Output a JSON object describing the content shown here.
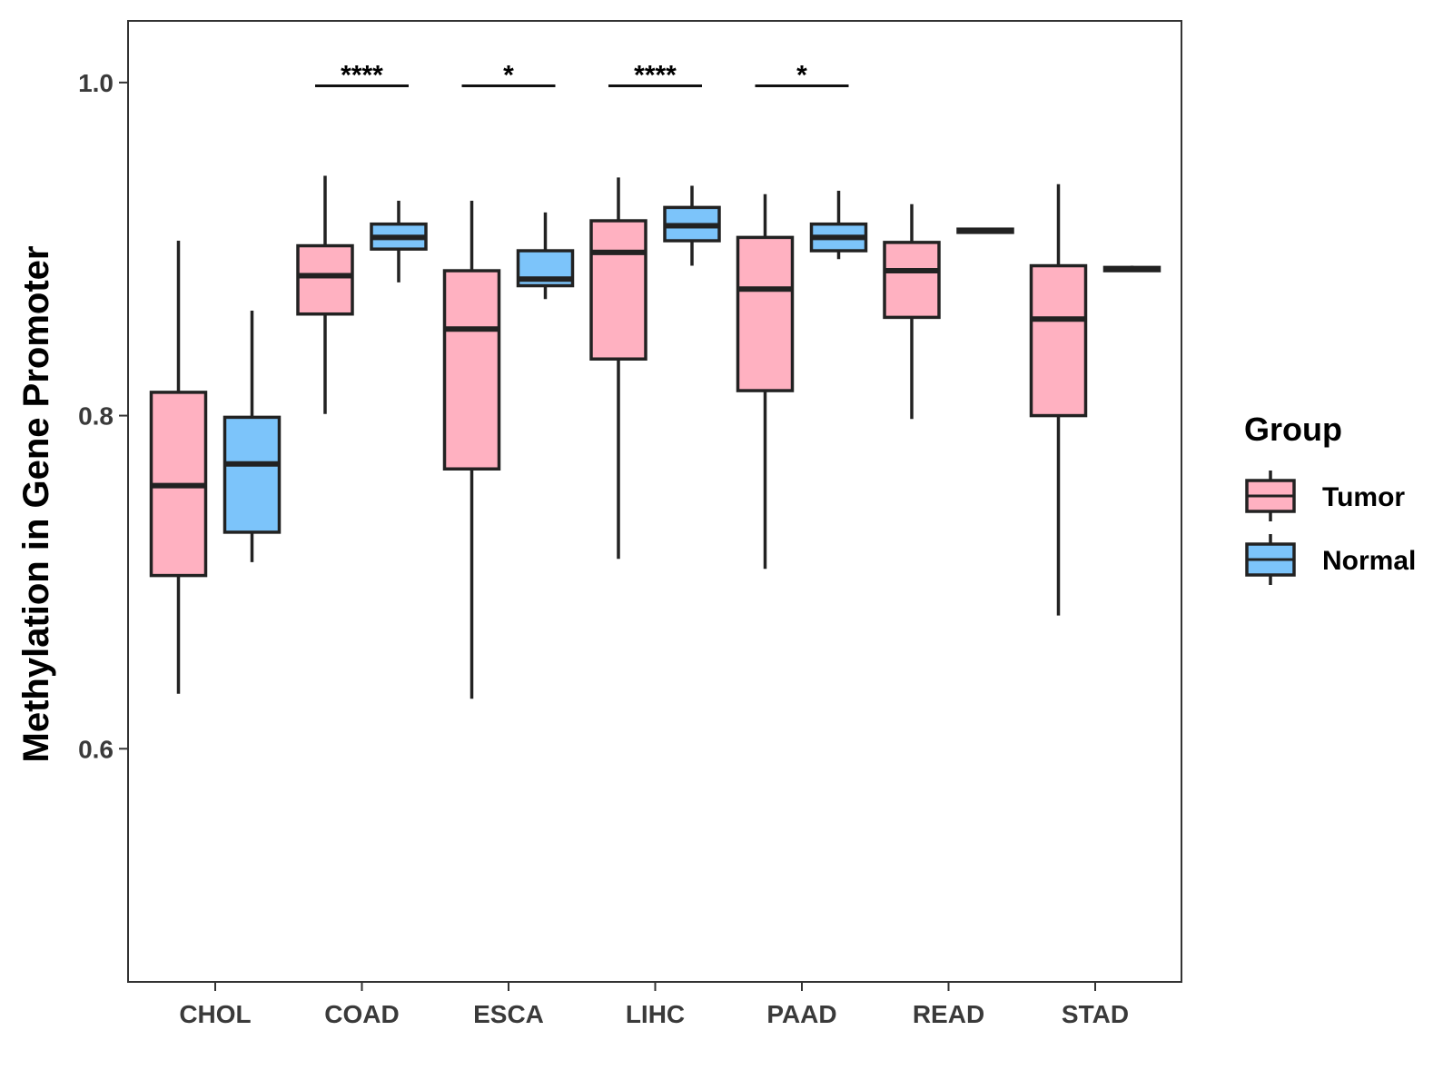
{
  "chart_data": {
    "type": "boxplot",
    "title": "",
    "xlabel": "",
    "ylabel": "Methylation in Gene Promoter",
    "ylim": [
      0.46,
      1.037
    ],
    "yticks": [
      0.6,
      0.8,
      1.0
    ],
    "ytick_labels": [
      "0.6",
      "0.8",
      "1.0"
    ],
    "categories": [
      "CHOL",
      "COAD",
      "ESCA",
      "LIHC",
      "PAAD",
      "READ",
      "STAD"
    ],
    "legend": {
      "title": "Group",
      "position": "right",
      "entries": [
        {
          "name": "Tumor",
          "color": "#FFB1C1"
        },
        {
          "name": "Normal",
          "color": "#7CC4FA"
        }
      ]
    },
    "series": [
      {
        "name": "Tumor",
        "color": "#FFB1C1",
        "boxes": [
          {
            "min": 0.633,
            "q1": 0.704,
            "median": 0.758,
            "q3": 0.814,
            "max": 0.905
          },
          {
            "min": 0.801,
            "q1": 0.861,
            "median": 0.884,
            "q3": 0.902,
            "max": 0.944
          },
          {
            "min": 0.63,
            "q1": 0.768,
            "median": 0.852,
            "q3": 0.887,
            "max": 0.929
          },
          {
            "min": 0.714,
            "q1": 0.834,
            "median": 0.898,
            "q3": 0.917,
            "max": 0.943
          },
          {
            "min": 0.708,
            "q1": 0.815,
            "median": 0.876,
            "q3": 0.907,
            "max": 0.933
          },
          {
            "min": 0.798,
            "q1": 0.859,
            "median": 0.887,
            "q3": 0.904,
            "max": 0.927
          },
          {
            "min": 0.68,
            "q1": 0.8,
            "median": 0.858,
            "q3": 0.89,
            "max": 0.939
          }
        ]
      },
      {
        "name": "Normal",
        "color": "#7CC4FA",
        "boxes": [
          {
            "min": 0.712,
            "q1": 0.73,
            "median": 0.771,
            "q3": 0.799,
            "max": 0.863
          },
          {
            "min": 0.88,
            "q1": 0.9,
            "median": 0.907,
            "q3": 0.915,
            "max": 0.929
          },
          {
            "min": 0.87,
            "q1": 0.878,
            "median": 0.882,
            "q3": 0.899,
            "max": 0.922
          },
          {
            "min": 0.89,
            "q1": 0.905,
            "median": 0.914,
            "q3": 0.925,
            "max": 0.938
          },
          {
            "min": 0.894,
            "q1": 0.899,
            "median": 0.907,
            "q3": 0.915,
            "max": 0.935
          },
          {
            "min": 0.91,
            "q1": 0.91,
            "median": 0.911,
            "q3": 0.912,
            "max": 0.912
          },
          {
            "min": 0.887,
            "q1": 0.887,
            "median": 0.888,
            "q3": 0.889,
            "max": 0.89
          }
        ]
      }
    ],
    "significance": [
      {
        "category": "COAD",
        "label": "****",
        "y": 0.998
      },
      {
        "category": "ESCA",
        "label": "*",
        "y": 0.998
      },
      {
        "category": "LIHC",
        "label": "****",
        "y": 0.998
      },
      {
        "category": "PAAD",
        "label": "*",
        "y": 0.998
      }
    ],
    "grid": false
  }
}
